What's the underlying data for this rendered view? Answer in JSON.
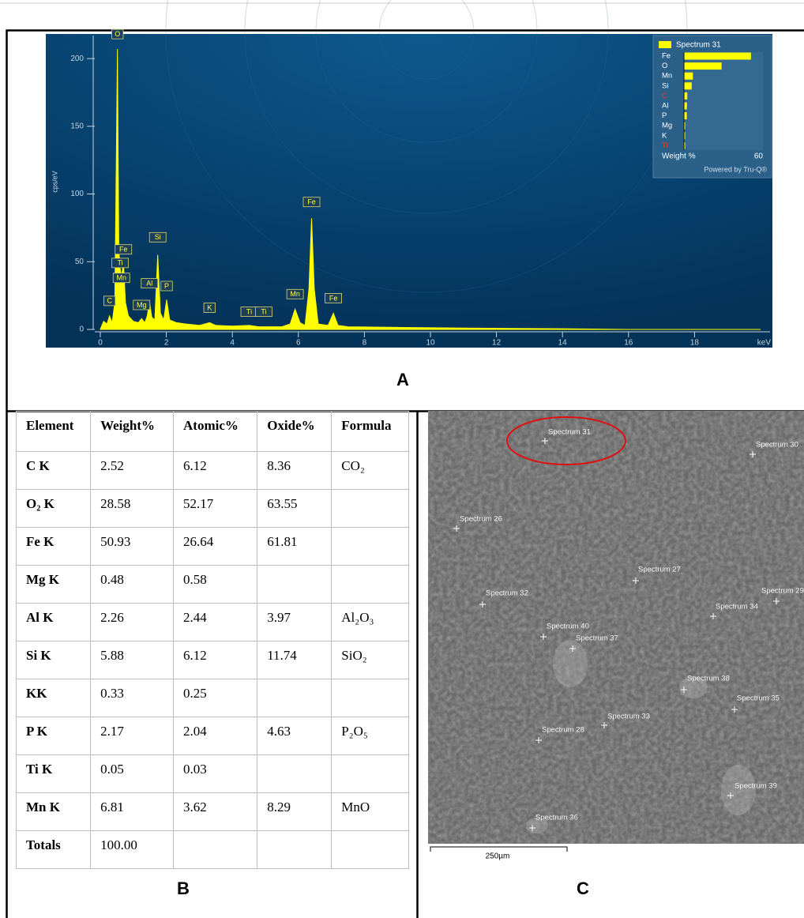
{
  "chart_data": [
    {
      "type": "line",
      "color": "#ffff00",
      "ylabel": "cps/eV",
      "xlabel": "keV",
      "xlim": [
        0,
        20
      ],
      "ylim": [
        0,
        217
      ],
      "xticks": [
        0,
        2,
        4,
        6,
        8,
        10,
        12,
        14,
        16,
        18
      ],
      "yticks": [
        0,
        50,
        100,
        150,
        200
      ],
      "x": [
        0,
        0.1,
        0.2,
        0.28,
        0.36,
        0.44,
        0.52,
        0.56,
        0.6,
        0.64,
        0.7,
        0.76,
        0.85,
        1.0,
        1.15,
        1.25,
        1.35,
        1.42,
        1.49,
        1.56,
        1.65,
        1.74,
        1.82,
        1.92,
        2.01,
        2.1,
        2.3,
        2.6,
        3.0,
        3.31,
        3.5,
        4.0,
        4.51,
        4.8,
        5.5,
        5.75,
        5.9,
        6.05,
        6.2,
        6.32,
        6.4,
        6.48,
        6.6,
        6.9,
        7.06,
        7.2,
        7.5,
        9,
        11,
        14,
        16,
        20
      ],
      "values": [
        0,
        6,
        4,
        10,
        5,
        20,
        207,
        60,
        45,
        38,
        50,
        20,
        10,
        6,
        5,
        8,
        5,
        10,
        20,
        9,
        7,
        55,
        12,
        7,
        22,
        7,
        5,
        4,
        3,
        5,
        3,
        2.5,
        3,
        2,
        2,
        4,
        15,
        5,
        3,
        30,
        82,
        30,
        4,
        3,
        12,
        3,
        2,
        1.5,
        1,
        0.5,
        0,
        0
      ],
      "peak_labels": [
        {
          "text": "O",
          "x": 0.52,
          "y": 214
        },
        {
          "text": "Fe",
          "x": 0.7,
          "y": 55
        },
        {
          "text": "Ti",
          "x": 0.6,
          "y": 45
        },
        {
          "text": "Mn",
          "x": 0.64,
          "y": 34
        },
        {
          "text": "C",
          "x": 0.28,
          "y": 17
        },
        {
          "text": "Mg",
          "x": 1.25,
          "y": 14
        },
        {
          "text": "Al",
          "x": 1.49,
          "y": 30
        },
        {
          "text": "Si",
          "x": 1.74,
          "y": 64
        },
        {
          "text": "P",
          "x": 2.01,
          "y": 28
        },
        {
          "text": "K",
          "x": 3.31,
          "y": 12
        },
        {
          "text": "Ti",
          "x": 4.51,
          "y": 9
        },
        {
          "text": "Ti",
          "x": 4.95,
          "y": 9
        },
        {
          "text": "Mn",
          "x": 5.9,
          "y": 22
        },
        {
          "text": "Fe",
          "x": 6.4,
          "y": 90
        },
        {
          "text": "Fe",
          "x": 7.06,
          "y": 19
        }
      ]
    },
    {
      "type": "bar",
      "categories": [
        "Fe",
        "O",
        "Mn",
        "Si",
        "C",
        "Al",
        "P",
        "Mg",
        "K",
        "Ti"
      ],
      "category_colors": [
        "#ffffff",
        "#ffffff",
        "#ffffff",
        "#ffffff",
        "#ff3030",
        "#ffffff",
        "#ffffff",
        "#ffffff",
        "#ffffff",
        "#ff3030"
      ],
      "series": [
        {
          "name": "Spectrum 31",
          "color": "#ffff00",
          "values": [
            50.93,
            28.58,
            6.81,
            5.88,
            2.52,
            2.26,
            2.17,
            0.48,
            0.33,
            0.05
          ]
        }
      ],
      "xlim": [
        0,
        60
      ],
      "xticks": [
        60
      ],
      "xlabel": "Weight %",
      "note": "Powered by Tru-Q®"
    }
  ],
  "panel_labels": {
    "a": "A",
    "b": "B",
    "c": "C"
  },
  "table": {
    "header": [
      "Element",
      "Weight%",
      "Atomic%",
      "Oxide%",
      "Formula"
    ],
    "rows": [
      [
        "C K",
        "2.52",
        "6.12",
        "8.36",
        "CO₂"
      ],
      [
        "O₂ K",
        "28.58",
        "52.17",
        "63.55",
        ""
      ],
      [
        "Fe K",
        "50.93",
        "26.64",
        "61.81",
        ""
      ],
      [
        "Mg K",
        "0.48",
        "0.58",
        "",
        ""
      ],
      [
        "Al K",
        "2.26",
        "2.44",
        "3.97",
        "Al₂O₃"
      ],
      [
        "Si K",
        "5.88",
        "6.12",
        "11.74",
        "SiO₂"
      ],
      [
        "KK",
        "0.33",
        "0.25",
        "",
        ""
      ],
      [
        "P K",
        "2.17",
        "2.04",
        "4.63",
        "P₂O₅"
      ],
      [
        "Ti K",
        "0.05",
        "0.03",
        "",
        ""
      ],
      [
        "Mn K",
        "6.81",
        "3.62",
        "8.29",
        "MnO"
      ],
      [
        "Totals",
        "100.00",
        "",
        "",
        ""
      ]
    ]
  },
  "image": {
    "labels": [
      "Spectrum 31",
      "Spectrum 30",
      "Spectrum 26",
      "Spectrum 27",
      "Spectrum 32",
      "Spectrum 29",
      "Spectrum 34",
      "Spectrum 40",
      "Spectrum 37",
      "Spectrum 38",
      "Spectrum 35",
      "Spectrum 33",
      "Spectrum 28",
      "Spectrum 39",
      "Spectrum 36"
    ],
    "scale_bar": "250µm"
  }
}
